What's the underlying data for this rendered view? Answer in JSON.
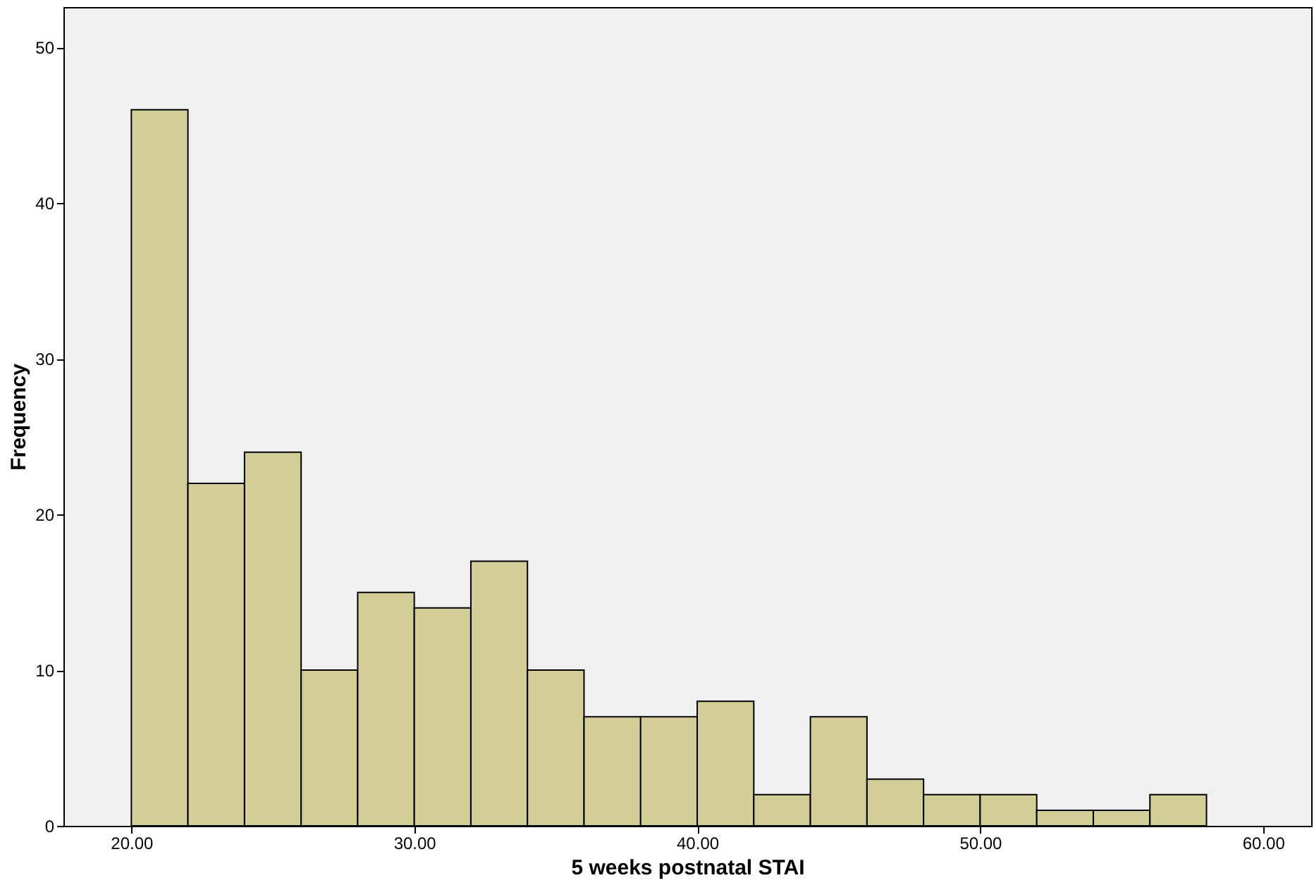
{
  "chart_data": {
    "type": "histogram",
    "xlabel": "5 weeks postnatal STAI",
    "ylabel": "Frequency",
    "bins": [
      20,
      22,
      24,
      26,
      28,
      30,
      32,
      34,
      36,
      38,
      40,
      42,
      44,
      46,
      48,
      50,
      52,
      54,
      56,
      58
    ],
    "values": [
      46,
      22,
      24,
      10,
      15,
      14,
      17,
      10,
      7,
      7,
      8,
      2,
      7,
      3,
      2,
      2,
      1,
      1,
      2
    ],
    "color": "#d3ce97",
    "xlim": [
      17.6,
      61.7
    ],
    "ylim": [
      0,
      52.6
    ],
    "xticks": [
      {
        "value": 20,
        "label": "20.00"
      },
      {
        "value": 30,
        "label": "30.00"
      },
      {
        "value": 40,
        "label": "40.00"
      },
      {
        "value": 50,
        "label": "50.00"
      },
      {
        "value": 60,
        "label": "60.00"
      }
    ],
    "yticks": [
      0,
      10,
      20,
      30,
      40,
      50
    ],
    "grid": false
  }
}
